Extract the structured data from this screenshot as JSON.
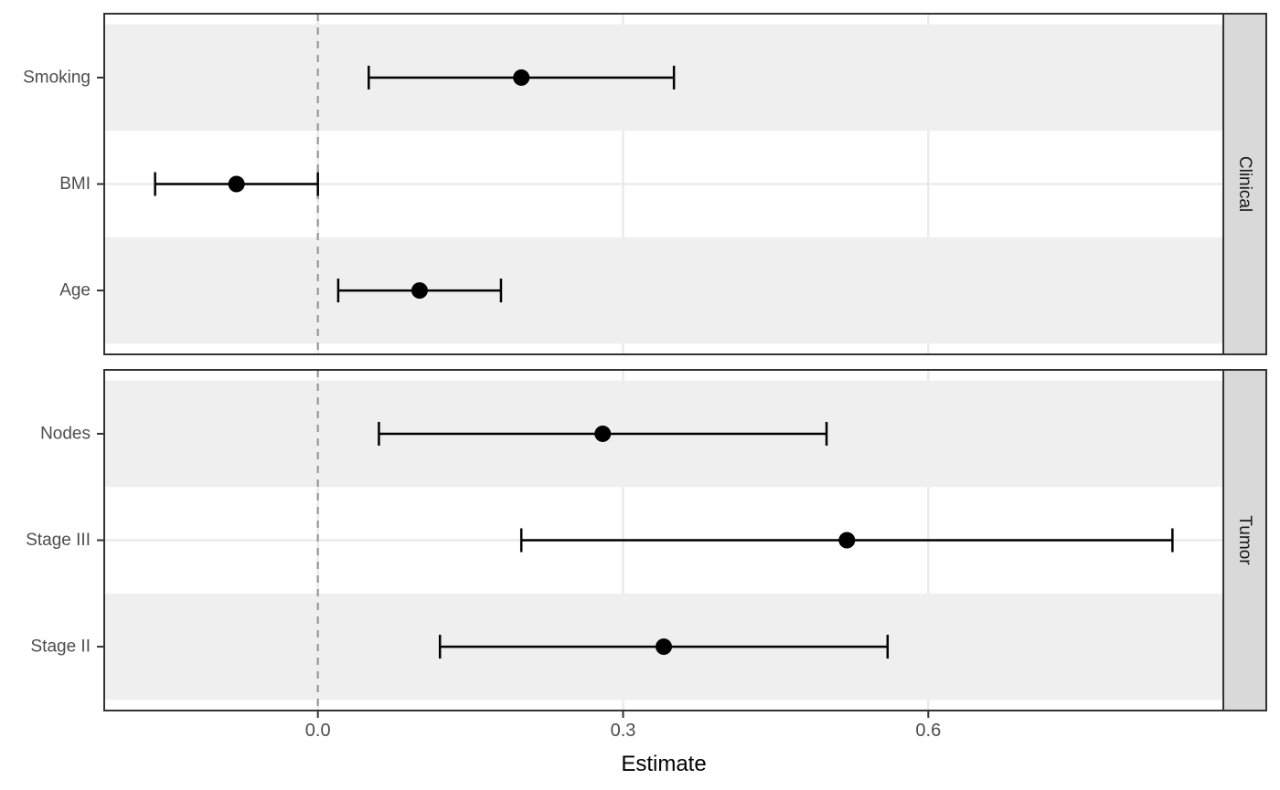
{
  "figure": {
    "description": "Faceted forest plot of regression estimates with confidence intervals",
    "xlabel": "Estimate"
  },
  "chart_data": {
    "type": "scatter",
    "variant": "forest_plot_with_error_bars",
    "title": "",
    "xlabel": "Estimate",
    "ylabel": "",
    "xlim": [
      -0.21,
      0.89
    ],
    "x_ticks": [
      0.0,
      0.3,
      0.6
    ],
    "x_tick_labels": [
      "0.0",
      "0.3",
      "0.6"
    ],
    "legend": "none",
    "grid": "major vertical gridlines at x ticks; horizontal gridline per category; alternating light-gray row bands",
    "reference_line": {
      "x": 0.0,
      "style": "dashed"
    },
    "facet_strip_side": "right",
    "facets": [
      {
        "label": "Clinical",
        "rows": [
          {
            "label": "Smoking",
            "estimate": 0.2,
            "ci_low": 0.05,
            "ci_high": 0.35
          },
          {
            "label": "BMI",
            "estimate": -0.08,
            "ci_low": -0.16,
            "ci_high": 0.0
          },
          {
            "label": "Age",
            "estimate": 0.1,
            "ci_low": 0.02,
            "ci_high": 0.18
          }
        ]
      },
      {
        "label": "Tumor",
        "rows": [
          {
            "label": "Nodes",
            "estimate": 0.28,
            "ci_low": 0.06,
            "ci_high": 0.5
          },
          {
            "label": "Stage III",
            "estimate": 0.52,
            "ci_low": 0.2,
            "ci_high": 0.84
          },
          {
            "label": "Stage II",
            "estimate": 0.34,
            "ci_low": 0.12,
            "ci_high": 0.56
          }
        ]
      }
    ],
    "colors": {
      "point": "#000000",
      "error_bar": "#000000",
      "reference_line": "#999999",
      "band_fill": "#efefef",
      "gridline": "#ebebeb",
      "panel_border": "#333333",
      "strip_fill": "#d9d9d9",
      "strip_border": "#333333",
      "axis_text": "#4d4d4d",
      "axis_title": "#000000",
      "background": "#ffffff"
    }
  }
}
